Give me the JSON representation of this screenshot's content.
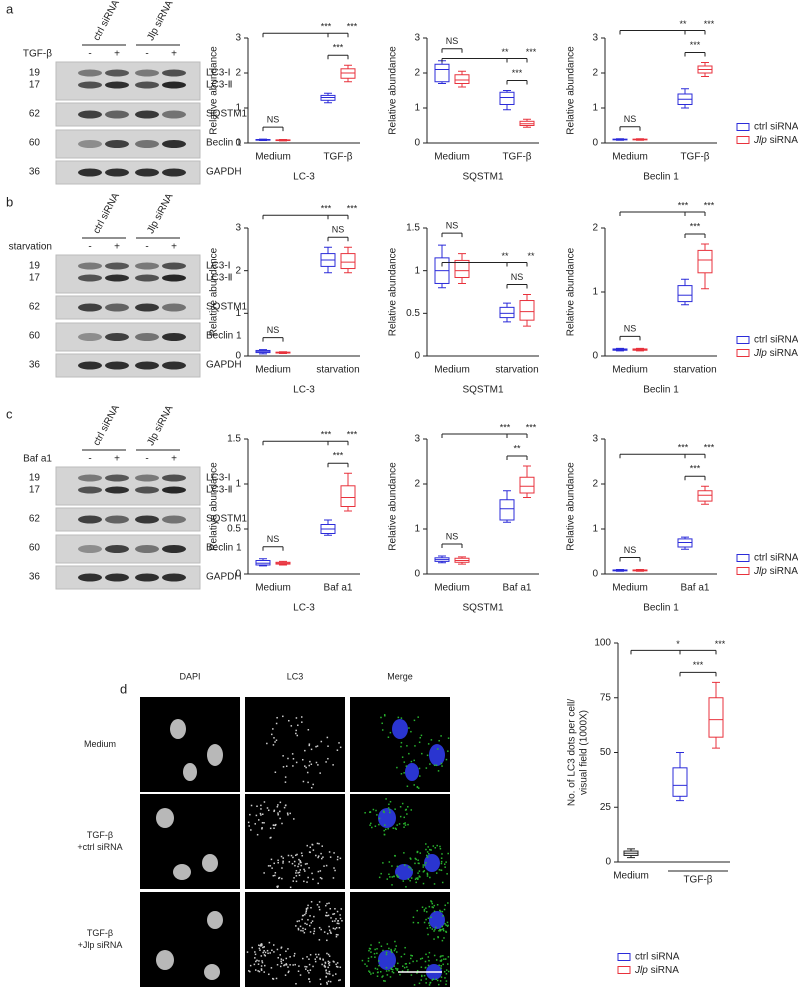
{
  "panel_labels": [
    "a",
    "b",
    "c",
    "d"
  ],
  "blots": [
    {
      "treatment": "TGF-β",
      "groups": [
        "ctrl siRNA",
        "Jlp siRNA"
      ],
      "signs": [
        "-",
        "+",
        "-",
        "+"
      ],
      "markers": [
        19,
        17,
        62,
        60,
        36
      ],
      "bands": [
        "LC3-Ⅰ",
        "LC3-Ⅱ",
        "SQSTM1",
        "Beclin 1",
        "GAPDH"
      ]
    },
    {
      "treatment": "starvation",
      "groups": [
        "ctrl siRNA",
        "Jlp siRNA"
      ],
      "signs": [
        "-",
        "+",
        "-",
        "+"
      ],
      "markers": [
        19,
        17,
        62,
        60,
        36
      ],
      "bands": [
        "LC3-Ⅰ",
        "LC3-Ⅱ",
        "SQSTM1",
        "Beclin 1",
        "GAPDH"
      ]
    },
    {
      "treatment": "Baf a1",
      "groups": [
        "ctrl siRNA",
        "Jlp siRNA"
      ],
      "signs": [
        "-",
        "+",
        "-",
        "+"
      ],
      "markers": [
        19,
        17,
        62,
        60,
        36
      ],
      "bands": [
        "LC3-Ⅰ",
        "LC3-Ⅱ",
        "SQSTM1",
        "Beclin 1",
        "GAPDH"
      ]
    }
  ],
  "microscopy": {
    "columns": [
      "DAPI",
      "LC3",
      "Merge"
    ],
    "rows": [
      [
        "Medium"
      ],
      [
        "TGF-β",
        "+ctrl siRNA"
      ],
      [
        "TGF-β",
        "+Jlp siRNA"
      ]
    ]
  },
  "chart_data": [
    {
      "type": "box",
      "xlabel": "LC-3",
      "ylabel": "Relative abundance",
      "categories": [
        "Medium",
        "TGF-β"
      ],
      "ylim": [
        0,
        3
      ],
      "yticks": [
        0,
        1,
        2,
        3
      ],
      "series": [
        {
          "color": "#2b2bd9",
          "values": [
            [
              0.07,
              0.08,
              0.09,
              0.1,
              0.11
            ],
            [
              1.15,
              1.22,
              1.3,
              1.36,
              1.42
            ]
          ]
        },
        {
          "color": "#e8323c",
          "values": [
            [
              0.06,
              0.07,
              0.08,
              0.09,
              0.1
            ],
            [
              1.75,
              1.85,
              2.0,
              2.12,
              2.22
            ]
          ]
        }
      ],
      "annotations": [
        "NS",
        "***",
        "***",
        "***"
      ]
    },
    {
      "type": "box",
      "xlabel": "SQSTM1",
      "ylabel": "Relative abundance",
      "categories": [
        "Medium",
        "TGF-β"
      ],
      "ylim": [
        0,
        3
      ],
      "yticks": [
        0,
        1,
        2,
        3
      ],
      "series": [
        {
          "color": "#2b2bd9",
          "values": [
            [
              1.7,
              1.75,
              2.1,
              2.25,
              2.35
            ],
            [
              0.95,
              1.1,
              1.3,
              1.45,
              1.5
            ]
          ]
        },
        {
          "color": "#e8323c",
          "values": [
            [
              1.6,
              1.7,
              1.8,
              1.95,
              2.05
            ],
            [
              0.45,
              0.5,
              0.55,
              0.62,
              0.68
            ]
          ]
        }
      ],
      "annotations": [
        "NS",
        "**",
        "***",
        "***"
      ]
    },
    {
      "type": "box",
      "xlabel": "Beclin 1",
      "ylabel": "Relative abundance",
      "categories": [
        "Medium",
        "TGF-β"
      ],
      "ylim": [
        0,
        3
      ],
      "yticks": [
        0,
        1,
        2,
        3
      ],
      "legend": "right",
      "series": [
        {
          "name": "ctrl siRNA",
          "color": "#2b2bd9",
          "values": [
            [
              0.08,
              0.09,
              0.1,
              0.11,
              0.12
            ],
            [
              1.0,
              1.1,
              1.25,
              1.4,
              1.55
            ]
          ]
        },
        {
          "name": "Jlp siRNA",
          "color": "#e8323c",
          "values": [
            [
              0.08,
              0.09,
              0.1,
              0.11,
              0.12
            ],
            [
              1.9,
              2.0,
              2.1,
              2.2,
              2.3
            ]
          ]
        }
      ],
      "annotations": [
        "NS",
        "**",
        "***",
        "***"
      ]
    },
    {
      "type": "box",
      "xlabel": "LC-3",
      "ylabel": "Relative abundance",
      "categories": [
        "Medium",
        "starvation"
      ],
      "ylim": [
        0,
        3
      ],
      "yticks": [
        0,
        1,
        2,
        3
      ],
      "series": [
        {
          "color": "#2b2bd9",
          "values": [
            [
              0.05,
              0.08,
              0.1,
              0.13,
              0.15
            ],
            [
              1.95,
              2.1,
              2.25,
              2.4,
              2.55
            ]
          ]
        },
        {
          "color": "#e8323c",
          "values": [
            [
              0.06,
              0.07,
              0.08,
              0.09,
              0.1
            ],
            [
              1.95,
              2.05,
              2.2,
              2.4,
              2.55
            ]
          ]
        }
      ],
      "annotations": [
        "NS",
        "***",
        "***",
        "NS"
      ]
    },
    {
      "type": "box",
      "xlabel": "SQSTM1",
      "ylabel": "Relative abundance",
      "categories": [
        "Medium",
        "starvation"
      ],
      "ylim": [
        0,
        1.5
      ],
      "yticks": [
        0,
        0.5,
        1,
        1.5
      ],
      "series": [
        {
          "color": "#2b2bd9",
          "values": [
            [
              0.8,
              0.85,
              1.0,
              1.15,
              1.3
            ],
            [
              0.4,
              0.45,
              0.5,
              0.57,
              0.62
            ]
          ]
        },
        {
          "color": "#e8323c",
          "values": [
            [
              0.85,
              0.92,
              1.0,
              1.12,
              1.2
            ],
            [
              0.35,
              0.42,
              0.52,
              0.65,
              0.72
            ]
          ]
        }
      ],
      "annotations": [
        "NS",
        "**",
        "**",
        "NS"
      ]
    },
    {
      "type": "box",
      "xlabel": "Beclin 1",
      "ylabel": "Relative abundance",
      "categories": [
        "Medium",
        "starvation"
      ],
      "ylim": [
        0,
        2
      ],
      "yticks": [
        0,
        1,
        2
      ],
      "legend": "right",
      "series": [
        {
          "name": "ctrl siRNA",
          "color": "#2b2bd9",
          "values": [
            [
              0.08,
              0.09,
              0.1,
              0.11,
              0.12
            ],
            [
              0.8,
              0.85,
              0.95,
              1.1,
              1.2
            ]
          ]
        },
        {
          "name": "Jlp siRNA",
          "color": "#e8323c",
          "values": [
            [
              0.08,
              0.09,
              0.1,
              0.11,
              0.12
            ],
            [
              1.05,
              1.3,
              1.5,
              1.65,
              1.75
            ]
          ]
        }
      ],
      "annotations": [
        "NS",
        "***",
        "***",
        "***"
      ]
    },
    {
      "type": "box",
      "xlabel": "LC-3",
      "ylabel": "Relative abundance",
      "categories": [
        "Medium",
        "Baf a1"
      ],
      "ylim": [
        0,
        1.5
      ],
      "yticks": [
        0,
        0.5,
        1,
        1.5
      ],
      "series": [
        {
          "color": "#2b2bd9",
          "values": [
            [
              0.09,
              0.1,
              0.12,
              0.15,
              0.17
            ],
            [
              0.43,
              0.45,
              0.5,
              0.55,
              0.6
            ]
          ]
        },
        {
          "color": "#e8323c",
          "values": [
            [
              0.1,
              0.11,
              0.12,
              0.13,
              0.14
            ],
            [
              0.7,
              0.75,
              0.85,
              0.98,
              1.12
            ]
          ]
        }
      ],
      "annotations": [
        "NS",
        "***",
        "***",
        "***"
      ]
    },
    {
      "type": "box",
      "xlabel": "SQSTM1",
      "ylabel": "Relative abundance",
      "categories": [
        "Medium",
        "Baf a1"
      ],
      "ylim": [
        0,
        3
      ],
      "yticks": [
        0,
        1,
        2,
        3
      ],
      "series": [
        {
          "color": "#2b2bd9",
          "values": [
            [
              0.25,
              0.28,
              0.32,
              0.36,
              0.4
            ],
            [
              1.15,
              1.2,
              1.45,
              1.65,
              1.85
            ]
          ]
        },
        {
          "color": "#e8323c",
          "values": [
            [
              0.22,
              0.26,
              0.3,
              0.35,
              0.38
            ],
            [
              1.7,
              1.8,
              1.95,
              2.15,
              2.4
            ]
          ]
        }
      ],
      "annotations": [
        "NS",
        "***",
        "***",
        "**"
      ]
    },
    {
      "type": "box",
      "xlabel": "Beclin 1",
      "ylabel": "Relative abundance",
      "categories": [
        "Medium",
        "Baf a1"
      ],
      "ylim": [
        0,
        3
      ],
      "yticks": [
        0,
        1,
        2,
        3
      ],
      "legend": "right",
      "series": [
        {
          "name": "ctrl siRNA",
          "color": "#2b2bd9",
          "values": [
            [
              0.06,
              0.07,
              0.08,
              0.09,
              0.1
            ],
            [
              0.55,
              0.6,
              0.7,
              0.78,
              0.82
            ]
          ]
        },
        {
          "name": "Jlp siRNA",
          "color": "#e8323c",
          "values": [
            [
              0.06,
              0.07,
              0.08,
              0.09,
              0.1
            ],
            [
              1.55,
              1.62,
              1.75,
              1.85,
              1.95
            ]
          ]
        }
      ],
      "annotations": [
        "NS",
        "***",
        "***",
        "***"
      ]
    },
    {
      "type": "box",
      "ylabel": [
        "No. of LC3 dots per cell/",
        "visual field (1000X)"
      ],
      "categories": [
        "Medium",
        "TGF-β"
      ],
      "ylim": [
        0,
        100
      ],
      "yticks": [
        0,
        25,
        50,
        75,
        100
      ],
      "legend": "bottom",
      "series": [
        {
          "color": "#222222",
          "values": [
            [
              2,
              3,
              4,
              5,
              6
            ],
            null
          ]
        },
        {
          "name": "ctrl siRNA",
          "color": "#2b2bd9",
          "values": [
            null,
            [
              28,
              30,
              35,
              43,
              50
            ]
          ]
        },
        {
          "name": "Jlp siRNA",
          "color": "#e8323c",
          "values": [
            null,
            [
              52,
              57,
              65,
              75,
              82
            ]
          ]
        }
      ],
      "annotations": [
        "*",
        "***",
        "***"
      ]
    }
  ]
}
